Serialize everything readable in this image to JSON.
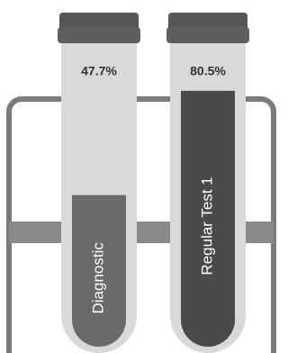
{
  "chart_data": {
    "type": "bar",
    "categories": [
      "Diagnostic",
      "Regular Test 1"
    ],
    "values": [
      47.7,
      80.5
    ],
    "value_labels": [
      "47.7%",
      "80.5%"
    ],
    "colors": [
      "#6a6a6a",
      "#4a4a4a"
    ],
    "ylim": [
      0,
      100
    ]
  }
}
